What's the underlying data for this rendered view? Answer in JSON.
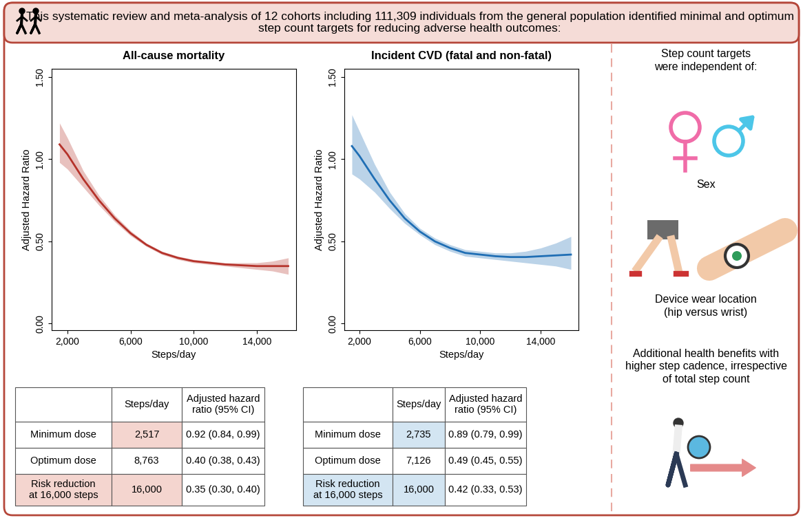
{
  "header": {
    "text": "This systematic review and meta-analysis of 12 cohorts including 111,309 individuals from the general population identified minimal and optimum step count targets for reducing adverse health outcomes:"
  },
  "chart_data": [
    {
      "type": "line",
      "title": "All-cause mortality",
      "x_label": "Steps/day",
      "y_label": "Adjusted Hazard Ratio",
      "color": "#b5322a",
      "x": [
        1500,
        2000,
        3000,
        4000,
        5000,
        6000,
        7000,
        8000,
        9000,
        10000,
        11000,
        12000,
        13000,
        14000,
        15000,
        16000
      ],
      "values": [
        1.09,
        1.03,
        0.88,
        0.75,
        0.64,
        0.55,
        0.48,
        0.43,
        0.4,
        0.38,
        0.37,
        0.36,
        0.355,
        0.35,
        0.35,
        0.35
      ],
      "lower": [
        0.98,
        0.94,
        0.83,
        0.72,
        0.62,
        0.535,
        0.47,
        0.42,
        0.39,
        0.37,
        0.36,
        0.35,
        0.34,
        0.33,
        0.32,
        0.3
      ],
      "upper": [
        1.22,
        1.13,
        0.93,
        0.78,
        0.66,
        0.565,
        0.49,
        0.44,
        0.41,
        0.39,
        0.38,
        0.37,
        0.37,
        0.37,
        0.38,
        0.4
      ],
      "xlim": [
        1000,
        16500
      ],
      "ylim": [
        -0.04,
        1.55
      ],
      "xticks": [
        {
          "value": 2000,
          "label": "2,000"
        },
        {
          "value": 6000,
          "label": "6,000"
        },
        {
          "value": 10000,
          "label": "10,000"
        },
        {
          "value": 14000,
          "label": "14,000"
        }
      ],
      "yticks": [
        {
          "value": 0,
          "label": "0.00"
        },
        {
          "value": 0.5,
          "label": "0.50"
        },
        {
          "value": 1,
          "label": "1.00"
        },
        {
          "value": 1.5,
          "label": "1.50"
        }
      ]
    },
    {
      "type": "line",
      "title": "Incident CVD (fatal and non-fatal)",
      "x_label": "Steps/day",
      "y_label": "Adjusted Hazard Ratio",
      "color": "#1f6eb4",
      "x": [
        1500,
        2000,
        3000,
        4000,
        5000,
        6000,
        7000,
        8000,
        9000,
        10000,
        11000,
        12000,
        13000,
        14000,
        15000,
        16000
      ],
      "values": [
        1.08,
        1.02,
        0.88,
        0.75,
        0.64,
        0.56,
        0.5,
        0.46,
        0.43,
        0.42,
        0.41,
        0.405,
        0.405,
        0.41,
        0.415,
        0.42
      ],
      "lower": [
        0.91,
        0.88,
        0.8,
        0.7,
        0.61,
        0.54,
        0.48,
        0.44,
        0.41,
        0.4,
        0.39,
        0.38,
        0.37,
        0.36,
        0.35,
        0.33
      ],
      "upper": [
        1.27,
        1.17,
        0.97,
        0.8,
        0.67,
        0.58,
        0.52,
        0.48,
        0.45,
        0.44,
        0.43,
        0.43,
        0.44,
        0.46,
        0.49,
        0.53
      ],
      "xlim": [
        1000,
        16500
      ],
      "ylim": [
        -0.04,
        1.55
      ],
      "xticks": [
        {
          "value": 2000,
          "label": "2,000"
        },
        {
          "value": 6000,
          "label": "6,000"
        },
        {
          "value": 10000,
          "label": "10,000"
        },
        {
          "value": 14000,
          "label": "14,000"
        }
      ],
      "yticks": [
        {
          "value": 0,
          "label": "0.00"
        },
        {
          "value": 0.5,
          "label": "0.50"
        },
        {
          "value": 1,
          "label": "1.00"
        },
        {
          "value": 1.5,
          "label": "1.50"
        }
      ]
    }
  ],
  "tables": [
    {
      "shade": "#f4d5cf",
      "rows": [
        [
          "",
          "Steps/day",
          "Adjusted hazard\nratio (95% CI)"
        ],
        [
          "Minimum dose",
          "2,517",
          "0.92 (0.84, 0.99)"
        ],
        [
          "Optimum dose",
          "8,763",
          "0.40 (0.38, 0.43)"
        ],
        [
          "Risk reduction\nat 16,000 steps",
          "16,000",
          "0.35 (0.30, 0.40)"
        ]
      ]
    },
    {
      "shade": "#d3e5f2",
      "rows": [
        [
          "",
          "Steps/day",
          "Adjusted hazard\nratio (95% CI)"
        ],
        [
          "Minimum dose",
          "2,735",
          "0.89 (0.79, 0.99)"
        ],
        [
          "Optimum dose",
          "7,126",
          "0.49 (0.45, 0.55)"
        ],
        [
          "Risk reduction\nat 16,000 steps",
          "16,000",
          "0.42 (0.33, 0.53)"
        ]
      ]
    }
  ],
  "side_panel": {
    "heading": "Step count targets\nwere independent of:",
    "sex": "Sex",
    "device": "Device wear location\n(hip versus wrist)",
    "cadence": "Additional health benefits with\nhigher step cadence, irrespective\nof total step count"
  }
}
